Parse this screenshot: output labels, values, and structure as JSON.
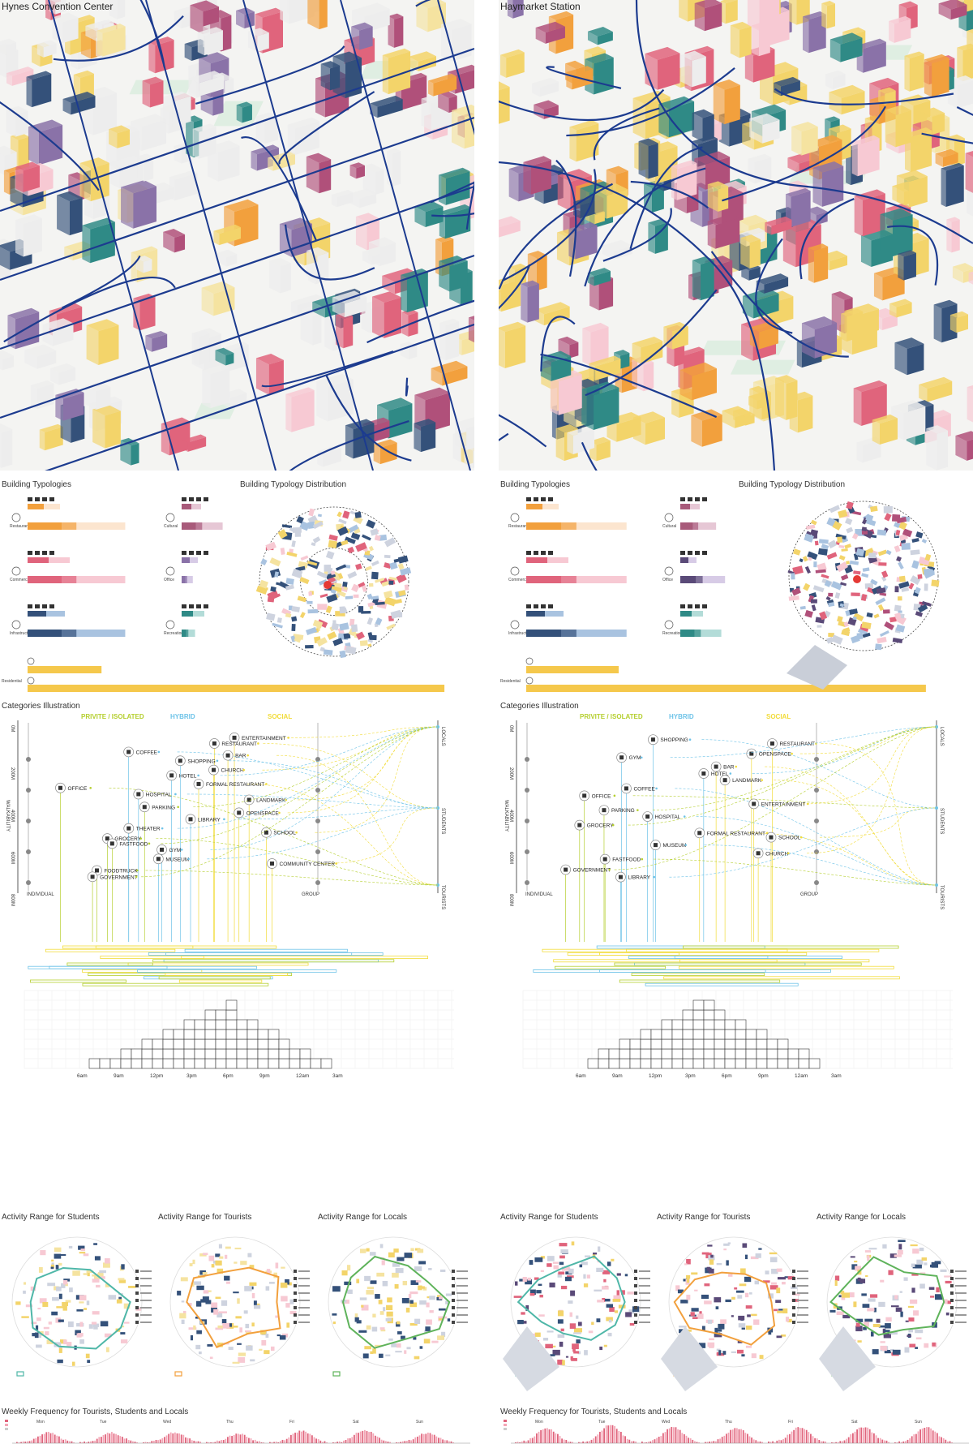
{
  "panels": [
    {
      "title": "Hynes Convention Center",
      "typologies": {
        "title": "Building Typologies",
        "rows": [
          {
            "label": "Restaurant",
            "color": "#f2a03d",
            "light": "#fce5cf",
            "w": 0.73
          },
          {
            "label": "Cultural",
            "color": "#a85a7a",
            "light": "#e6c7d5",
            "w": 0.55
          },
          {
            "label": "Commercial",
            "color": "#e0647c",
            "light": "#f7c9d3",
            "w": 0.73
          },
          {
            "label": "Office",
            "color": "#8a72a8",
            "light": "#d7cbe6",
            "w": 0.15
          },
          {
            "label": "Infrastructure",
            "color": "#34517a",
            "light": "#a9c3e0",
            "w": 0.73
          },
          {
            "label": "Recreation",
            "color": "#2f8a86",
            "light": "#b3dcd8",
            "w": 0.18
          }
        ],
        "residential": {
          "label": "Residential",
          "color": "#f5c84c",
          "small": 0.16,
          "big": 0.97
        }
      },
      "distribution_title": "Building Typology Distribution",
      "categories": {
        "title": "Categories Illustration",
        "headers": [
          "PRIVITE / ISOLATED",
          "HYBRID",
          "SOCIAL"
        ],
        "vlabels": [
          "LOCALS",
          "STUDENTS",
          "TOURISTS"
        ],
        "dist_labels": [
          "0M",
          "200M",
          "400M",
          "600M",
          "800M"
        ],
        "walkability": "WALKABILITY",
        "individual": "INDIVIDUAL",
        "group": "GROUP",
        "items": [
          {
            "name": "ENTERTAINMENT",
            "tag": "S"
          },
          {
            "name": "RESTAURANT",
            "tag": "S"
          },
          {
            "name": "COFFEE",
            "tag": "H"
          },
          {
            "name": "BAR",
            "tag": "S"
          },
          {
            "name": "SHOPPING",
            "tag": "H"
          },
          {
            "name": "CHURCH",
            "tag": "S"
          },
          {
            "name": "HOTEL",
            "tag": "H"
          },
          {
            "name": "FORMAL RESTAURANT",
            "tag": "S"
          },
          {
            "name": "OFFICE",
            "tag": "P"
          },
          {
            "name": "HOSPITAL",
            "tag": "H"
          },
          {
            "name": "LANDMARK",
            "tag": "S"
          },
          {
            "name": "PARKING",
            "tag": "P"
          },
          {
            "name": "OPENSPACE",
            "tag": "S"
          },
          {
            "name": "LIBRARY",
            "tag": "H"
          },
          {
            "name": "THEATER",
            "tag": "H"
          },
          {
            "name": "SCHOOL",
            "tag": "S"
          },
          {
            "name": "GROCERY",
            "tag": "P"
          },
          {
            "name": "FASTFOOD",
            "tag": "P"
          },
          {
            "name": "GYM",
            "tag": "H"
          },
          {
            "name": "MUSEUM",
            "tag": "H"
          },
          {
            "name": "COMMUNITY CENTER",
            "tag": "S"
          },
          {
            "name": "FOODTRUCK",
            "tag": "P"
          },
          {
            "name": "GOVERNMENT",
            "tag": "P"
          }
        ]
      },
      "time_ticks": [
        "6am",
        "9am",
        "12pm",
        "3pm",
        "6pm",
        "9pm",
        "12am",
        "3am"
      ],
      "histogram": [
        1,
        1,
        1,
        2,
        2,
        3,
        3,
        4,
        4,
        5,
        5,
        6,
        6,
        7,
        5,
        5,
        4,
        4,
        3,
        2,
        2,
        1,
        1
      ],
      "activity_titles": [
        "Activity Range for Students",
        "Activity Range for Tourists",
        "Activity Range for Locals"
      ],
      "weekly_title": "Weekly Frequency for Tourists, Students and Locals",
      "days": [
        "Mon",
        "Tue",
        "Wed",
        "Thu",
        "Fri",
        "Sat",
        "Sun"
      ]
    },
    {
      "title": "Haymarket Station",
      "typologies": {
        "title": "Building Typologies",
        "rows": [
          {
            "label": "Restaurant",
            "color": "#f2a03d",
            "light": "#fce5cf",
            "w": 0.75
          },
          {
            "label": "Cultural",
            "color": "#a85a7a",
            "light": "#e6c7d5",
            "w": 0.48
          },
          {
            "label": "Commercial",
            "color": "#e0647c",
            "light": "#f7c9d3",
            "w": 0.75
          },
          {
            "label": "Office",
            "color": "#5a4a78",
            "light": "#d7cbe6",
            "w": 0.6
          },
          {
            "label": "Infrastructure",
            "color": "#34517a",
            "light": "#a9c3e0",
            "w": 0.75
          },
          {
            "label": "Recreation",
            "color": "#2f8a86",
            "light": "#b3dcd8",
            "w": 0.55
          }
        ],
        "residential": {
          "label": "Residential",
          "color": "#f5c84c",
          "small": 0.2,
          "big": 0.93
        }
      },
      "distribution_title": "Building Typology Distribution",
      "categories": {
        "title": "Categories Illustration",
        "headers": [
          "PRIVITE / ISOLATED",
          "HYBRID",
          "SOCIAL"
        ],
        "vlabels": [
          "LOCALS",
          "STUDENTS",
          "TOURISTS"
        ],
        "dist_labels": [
          "0M",
          "200M",
          "400M",
          "600M",
          "800M"
        ],
        "walkability": "WALKABILITY",
        "individual": "INDIVIDUAL",
        "group": "GROUP",
        "items": [
          {
            "name": "SHOPPING",
            "tag": "H"
          },
          {
            "name": "RESTAURANT",
            "tag": "S"
          },
          {
            "name": "OPENSPACE",
            "tag": "S"
          },
          {
            "name": "GYM",
            "tag": "H"
          },
          {
            "name": "BAR",
            "tag": "S"
          },
          {
            "name": "HOTEL",
            "tag": "H"
          },
          {
            "name": "LANDMARK",
            "tag": "S"
          },
          {
            "name": "COFFEE",
            "tag": "H"
          },
          {
            "name": "OFFICE",
            "tag": "P"
          },
          {
            "name": "ENTERTAINMENT",
            "tag": "S"
          },
          {
            "name": "PARKING",
            "tag": "P"
          },
          {
            "name": "HOSPITAL",
            "tag": "H"
          },
          {
            "name": "GROCERY",
            "tag": "P"
          },
          {
            "name": "FORMAL RESTAURANT",
            "tag": "S"
          },
          {
            "name": "SCHOOL",
            "tag": "S"
          },
          {
            "name": "MUSEUM",
            "tag": "H"
          },
          {
            "name": "CHURCH",
            "tag": "S"
          },
          {
            "name": "FASTFOOD",
            "tag": "P"
          },
          {
            "name": "GOVERNMENT",
            "tag": "P"
          },
          {
            "name": "LIBRARY",
            "tag": "H"
          }
        ]
      },
      "time_ticks": [
        "6am",
        "9am",
        "12pm",
        "3pm",
        "6pm",
        "9pm",
        "12am",
        "3am"
      ],
      "histogram": [
        1,
        2,
        2,
        3,
        3,
        4,
        4,
        5,
        5,
        6,
        7,
        7,
        6,
        5,
        5,
        4,
        4,
        3,
        3,
        2,
        2,
        1
      ],
      "activity_titles": [
        "Activity Range for Students",
        "Activity Range for Tourists",
        "Activity Range for Locals"
      ],
      "weekly_title": "Weekly Frequency for Tourists, Students and Locals",
      "days": [
        "Mon",
        "Tue",
        "Wed",
        "Thu",
        "Fri",
        "Sat",
        "Sun"
      ]
    }
  ],
  "colors": {
    "private": "#b5cf2f",
    "hybrid": "#6ec3e8",
    "social": "#f2dc3a",
    "road": "#1c3b8f"
  }
}
